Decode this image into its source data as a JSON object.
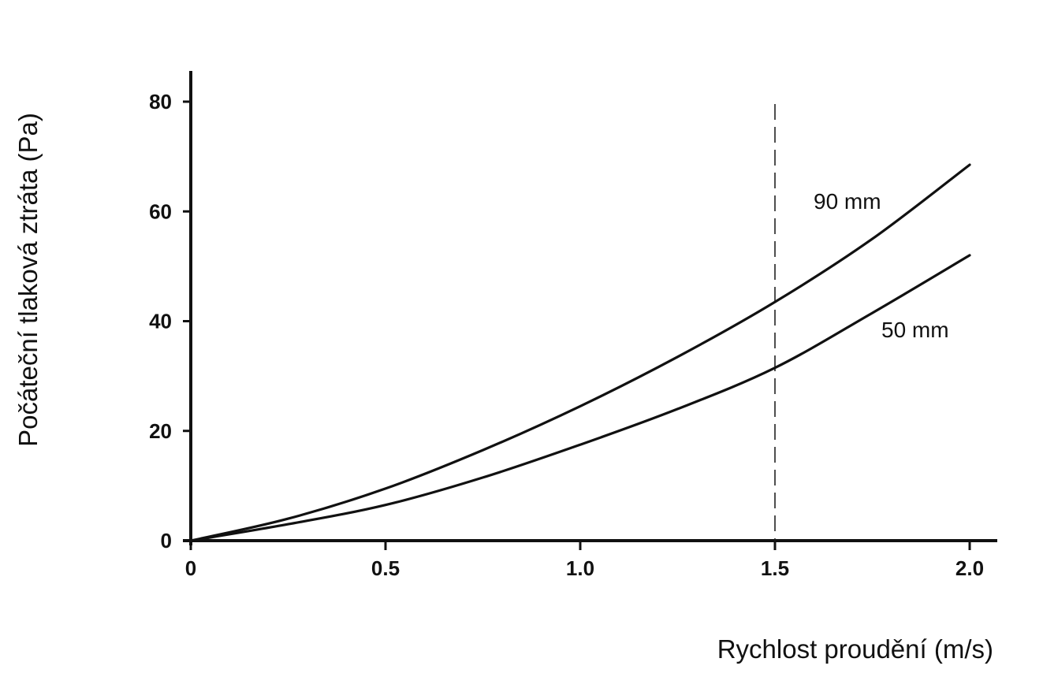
{
  "chart_data": {
    "type": "line",
    "xlabel": "Rychlost proudění (m/s)",
    "ylabel": "Počáteční tlaková ztráta (Pa)",
    "xlim": [
      0,
      2.0
    ],
    "ylim": [
      0,
      80
    ],
    "x_ticks": [
      "0",
      "0.5",
      "1.0",
      "1.5",
      "2.0"
    ],
    "y_ticks": [
      "0",
      "20",
      "40",
      "60",
      "80"
    ],
    "grid": false,
    "reference_line": {
      "x": 1.5,
      "style": "dashed"
    },
    "series": [
      {
        "name": "90 mm",
        "x": [
          0,
          0.25,
          0.5,
          0.75,
          1.0,
          1.25,
          1.5,
          1.75,
          2.0
        ],
        "y": [
          0,
          4,
          9.5,
          16.5,
          24.5,
          33.5,
          43.5,
          55,
          68.5
        ]
      },
      {
        "name": "50 mm",
        "x": [
          0,
          0.25,
          0.5,
          0.75,
          1.0,
          1.25,
          1.5,
          1.75,
          2.0
        ],
        "y": [
          0,
          3,
          6.5,
          11.5,
          17.5,
          24,
          31.5,
          41.5,
          52
        ]
      }
    ]
  }
}
